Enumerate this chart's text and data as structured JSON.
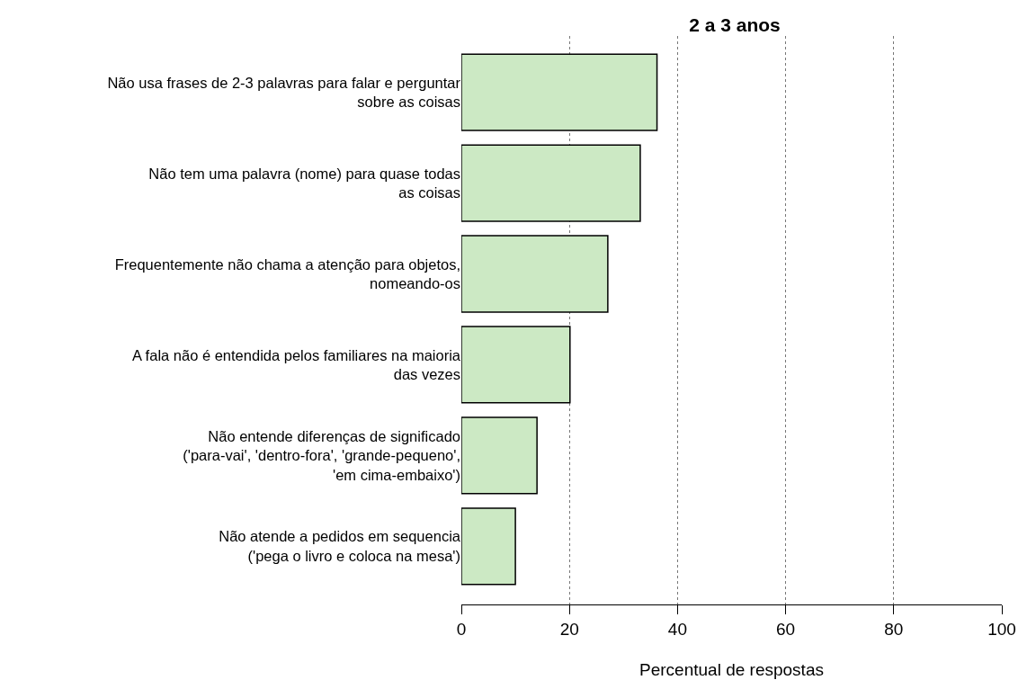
{
  "chart_data": {
    "type": "bar",
    "orientation": "horizontal",
    "title": "2 a 3 anos",
    "xlabel": "Percentual de respostas",
    "categories": [
      "Não usa frases de 2-3 palavras para falar e perguntar\nsobre as coisas",
      "Não tem uma palavra (nome) para quase todas\nas coisas",
      "Frequentemente não chama a atenção para objetos,\nnomeando-os",
      "A fala não é entendida pelos familiares na maioria\ndas vezes",
      "Não entende diferenças de significado\n('para-vai', 'dentro-fora', 'grande-pequeno',\n'em cima-embaixo')",
      "Não atende a pedidos em sequencia\n('pega o livro e coloca na mesa')"
    ],
    "values": [
      36.2,
      33.1,
      27.1,
      20.1,
      14.0,
      10.0
    ],
    "color": "#cce9c4",
    "xlim": [
      0,
      100
    ],
    "xticks": [
      0,
      20,
      40,
      60,
      80,
      100
    ],
    "grid": "x"
  }
}
